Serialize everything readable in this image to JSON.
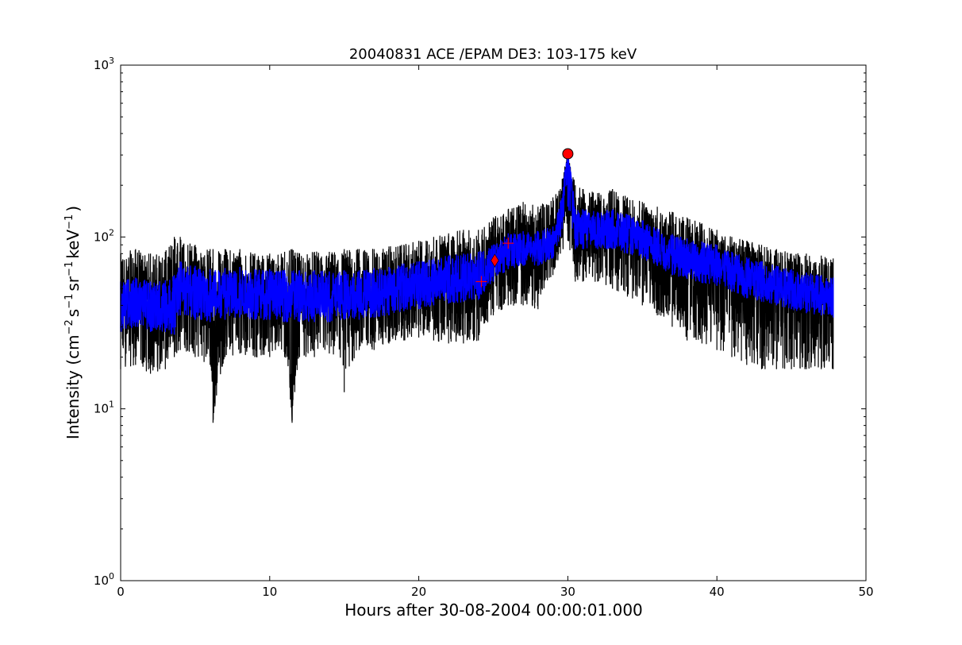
{
  "chart_data": {
    "type": "line",
    "title": "20040831 ACE /EPAM DE3: 103-175 keV",
    "xlabel": "Hours after 30-08-2004 00:00:01.000",
    "ylabel_base": "Intensity (cm",
    "ylabel_exp1": "−2",
    "ylabel_mid1": "s",
    "ylabel_exp2": "−1",
    "ylabel_mid2": "sr",
    "ylabel_exp3": "−1",
    "ylabel_mid3": "keV",
    "ylabel_exp4": "−1",
    "ylabel_end": ")",
    "xlim": [
      0,
      50
    ],
    "ylim": [
      1,
      1000
    ],
    "yscale": "log",
    "grid": false,
    "x_ticks": [
      0,
      10,
      20,
      30,
      40,
      50
    ],
    "x_tick_labels": [
      "0",
      "10",
      "20",
      "30",
      "40",
      "50"
    ],
    "y_ticks": [
      1,
      10,
      100,
      1000
    ],
    "y_tick_labels": [
      {
        "base": "10",
        "exp": "0"
      },
      {
        "base": "10",
        "exp": "1"
      },
      {
        "base": "10",
        "exp": "2"
      },
      {
        "base": "10",
        "exp": "3"
      }
    ],
    "series": [
      {
        "color": "#000000",
        "x": [
          0,
          1,
          2,
          3,
          3.6,
          4,
          5,
          6,
          6.2,
          7,
          8,
          9,
          10,
          11,
          11.5,
          12,
          13,
          14,
          15,
          16,
          17,
          18,
          19,
          20,
          21,
          22,
          23,
          24,
          25,
          26,
          27,
          28,
          29,
          29.5,
          30,
          30.5,
          31,
          32,
          33,
          34,
          35,
          36,
          37,
          38,
          39,
          40,
          41,
          42,
          43,
          44,
          45,
          46,
          47,
          47.8
        ],
        "y": [
          40,
          45,
          38,
          42,
          35,
          55,
          50,
          45,
          8.3,
          48,
          50,
          46,
          47,
          44,
          8.3,
          45,
          46,
          44,
          45,
          45,
          47,
          48,
          50,
          52,
          55,
          57,
          58,
          60,
          70,
          85,
          88,
          85,
          88,
          125,
          300,
          110,
          115,
          110,
          115,
          110,
          100,
          90,
          80,
          78,
          75,
          72,
          65,
          60,
          55,
          52,
          50,
          48,
          46,
          45
        ],
        "y_low": [
          17,
          18,
          16,
          17,
          20,
          22,
          20,
          18,
          8.3,
          20,
          21,
          20,
          20,
          20,
          8.3,
          20,
          20,
          21,
          12.5,
          22,
          22,
          24,
          25,
          26,
          25,
          24,
          24,
          25,
          35,
          40,
          40,
          38,
          60,
          80,
          95,
          55,
          55,
          55,
          50,
          45,
          40,
          35,
          30,
          25,
          24,
          22,
          20,
          18,
          17,
          17,
          17,
          17,
          17,
          17
        ],
        "y_high": [
          80,
          85,
          80,
          82,
          100,
          100,
          90,
          85,
          85,
          85,
          85,
          80,
          80,
          82,
          85,
          80,
          82,
          82,
          85,
          85,
          85,
          88,
          90,
          95,
          100,
          105,
          110,
          110,
          130,
          145,
          160,
          150,
          170,
          190,
          305,
          200,
          190,
          180,
          190,
          170,
          160,
          150,
          140,
          130,
          120,
          110,
          100,
          95,
          90,
          85,
          80,
          80,
          78,
          75
        ]
      },
      {
        "color": "#0000ff",
        "x": [
          0,
          1,
          2,
          3,
          3.6,
          4,
          5,
          6,
          7,
          8,
          9,
          10,
          11,
          12,
          13,
          14,
          15,
          16,
          17,
          18,
          19,
          20,
          21,
          22,
          23,
          24,
          25,
          26,
          27,
          28,
          29,
          29.5,
          30,
          30.5,
          31,
          32,
          33,
          34,
          35,
          36,
          37,
          38,
          39,
          40,
          41,
          42,
          43,
          44,
          45,
          46,
          47,
          47.8
        ],
        "y": [
          40,
          42,
          40,
          40,
          38,
          52,
          48,
          46,
          47,
          48,
          46,
          46,
          45,
          45,
          45,
          44,
          45,
          45,
          47,
          48,
          50,
          52,
          54,
          56,
          57,
          58,
          68,
          82,
          85,
          85,
          88,
          125,
          300,
          110,
          112,
          110,
          112,
          105,
          98,
          88,
          80,
          76,
          72,
          70,
          63,
          58,
          55,
          52,
          50,
          48,
          46,
          45
        ],
        "y_low": [
          28,
          30,
          28,
          28,
          27,
          35,
          33,
          32,
          33,
          34,
          33,
          33,
          32,
          32,
          32,
          32,
          33,
          33,
          34,
          35,
          37,
          38,
          40,
          41,
          42,
          43,
          55,
          65,
          68,
          68,
          75,
          100,
          150,
          85,
          85,
          85,
          85,
          80,
          75,
          68,
          60,
          57,
          54,
          52,
          48,
          44,
          42,
          40,
          38,
          36,
          35,
          34
        ],
        "y_high": [
          55,
          58,
          55,
          56,
          60,
          72,
          68,
          65,
          66,
          67,
          65,
          65,
          64,
          64,
          64,
          63,
          64,
          64,
          66,
          67,
          70,
          72,
          75,
          78,
          80,
          82,
          90,
          105,
          108,
          108,
          115,
          160,
          300,
          145,
          145,
          140,
          145,
          135,
          125,
          112,
          104,
          98,
          94,
          90,
          82,
          76,
          72,
          68,
          65,
          62,
          60,
          58
        ]
      }
    ],
    "markers": [
      {
        "type": "circle",
        "x": 30,
        "y": 305,
        "color": "#ff0000"
      },
      {
        "type": "diamond",
        "x": 25.1,
        "y": 73,
        "color": "#ff0000"
      },
      {
        "type": "plus",
        "x": 26,
        "y": 92,
        "color": "#ff0000"
      },
      {
        "type": "plus",
        "x": 24.2,
        "y": 55,
        "color": "#ff0000"
      }
    ]
  }
}
